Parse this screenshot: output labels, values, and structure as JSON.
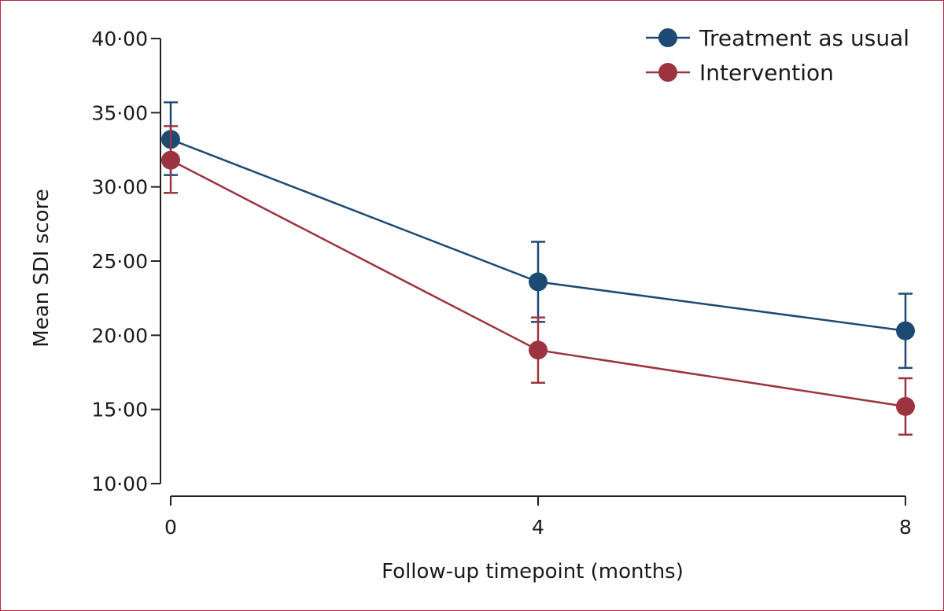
{
  "chart_data": {
    "type": "line",
    "xlabel": "Follow-up timepoint (months)",
    "ylabel": "Mean SDI score",
    "x": [
      0,
      4,
      8
    ],
    "x_tick_labels": [
      "0",
      "4",
      "8"
    ],
    "xlim": [
      0,
      8
    ],
    "ylim": [
      10,
      40
    ],
    "y_ticks": [
      10,
      15,
      20,
      25,
      30,
      35,
      40
    ],
    "y_tick_labels": [
      "10·00",
      "15·00",
      "20·00",
      "25·00",
      "30·00",
      "35·00",
      "40·00"
    ],
    "grid": false,
    "legend_position": "top-right",
    "series": [
      {
        "name": "Treatment as usual",
        "color": "#1c4a72",
        "values": [
          33.2,
          23.6,
          20.3
        ],
        "error_low": [
          30.8,
          20.9,
          17.8
        ],
        "error_high": [
          35.7,
          26.3,
          22.8
        ]
      },
      {
        "name": "Intervention",
        "color": "#9b3440",
        "values": [
          31.8,
          19.0,
          15.2
        ],
        "error_low": [
          29.6,
          16.8,
          13.3
        ],
        "error_high": [
          34.1,
          21.2,
          17.1
        ]
      }
    ]
  }
}
